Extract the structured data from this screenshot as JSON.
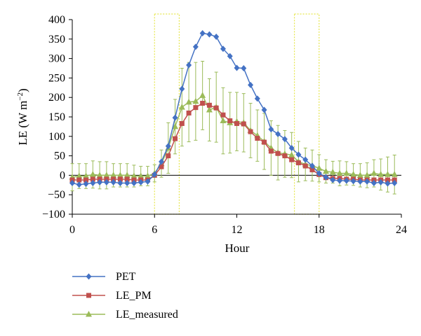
{
  "chart_data": {
    "type": "line",
    "xlabel": "Hour",
    "ylabel_main": "LE (W m",
    "ylabel_sup": "−2",
    "ylabel_close": ")",
    "xlim": [
      0,
      24
    ],
    "ylim": [
      -100,
      400
    ],
    "xticks": [
      0,
      6,
      12,
      18,
      24
    ],
    "yticks": [
      -100,
      -50,
      0,
      50,
      100,
      150,
      200,
      250,
      300,
      350,
      400
    ],
    "xtick_labels": [
      "0",
      "6",
      "12",
      "18",
      "24"
    ],
    "ytick_labels": [
      "−100",
      "−50",
      "0",
      "50",
      "100",
      "150",
      "200",
      "250",
      "300",
      "350",
      "400"
    ],
    "grid": false,
    "legend_position": "bottom-left",
    "highlight_windows": [
      [
        6,
        7.8
      ],
      [
        16.2,
        18
      ]
    ],
    "highlight_color": "#e6e64c",
    "x": [
      0,
      0.5,
      1,
      1.5,
      2,
      2.5,
      3,
      3.5,
      4,
      4.5,
      5,
      5.5,
      6,
      6.5,
      7,
      7.5,
      8,
      8.5,
      9,
      9.5,
      10,
      10.5,
      11,
      11.5,
      12,
      12.5,
      13,
      13.5,
      14,
      14.5,
      15,
      15.5,
      16,
      16.5,
      17,
      17.5,
      18,
      18.5,
      19,
      19.5,
      20,
      20.5,
      21,
      21.5,
      22,
      22.5,
      23,
      23.5
    ],
    "series": [
      {
        "name": "PET",
        "color": "#4472c4",
        "marker": "diamond",
        "values": [
          -20,
          -24,
          -22,
          -20,
          -18,
          -18,
          -18,
          -20,
          -20,
          -20,
          -18,
          -16,
          2,
          35,
          75,
          148,
          222,
          283,
          330,
          365,
          362,
          356,
          325,
          306,
          276,
          275,
          232,
          197,
          168,
          118,
          106,
          93,
          70,
          53,
          40,
          24,
          5,
          -5,
          -12,
          -14,
          -14,
          -15,
          -16,
          -16,
          -20,
          -18,
          -21,
          -20
        ]
      },
      {
        "name": "LE_PM",
        "color": "#c0504d",
        "marker": "square",
        "values": [
          -12,
          -12,
          -12,
          -10,
          -10,
          -10,
          -10,
          -10,
          -10,
          -12,
          -12,
          -12,
          0,
          22,
          50,
          94,
          133,
          160,
          174,
          185,
          180,
          173,
          155,
          140,
          133,
          132,
          112,
          95,
          85,
          62,
          56,
          50,
          40,
          32,
          24,
          14,
          2,
          -6,
          -8,
          -8,
          -10,
          -10,
          -12,
          -12,
          -12,
          -12,
          -12,
          -12
        ]
      },
      {
        "name": "LE_measured",
        "color": "#9bbb59",
        "marker": "triangle",
        "values": [
          -5,
          -2,
          -2,
          2,
          0,
          0,
          0,
          0,
          0,
          -2,
          -2,
          -2,
          5,
          30,
          70,
          125,
          175,
          188,
          190,
          205,
          168,
          175,
          140,
          135,
          138,
          135,
          115,
          102,
          87,
          70,
          58,
          55,
          52,
          35,
          28,
          25,
          18,
          10,
          8,
          5,
          5,
          2,
          0,
          0,
          5,
          2,
          2,
          2
        ],
        "errors": [
          35,
          32,
          32,
          35,
          35,
          35,
          30,
          30,
          30,
          28,
          25,
          25,
          22,
          35,
          65,
          70,
          100,
          102,
          100,
          88,
          80,
          90,
          85,
          78,
          75,
          75,
          70,
          66,
          72,
          70,
          70,
          60,
          58,
          52,
          42,
          40,
          35,
          30,
          28,
          32,
          30,
          28,
          30,
          32,
          35,
          40,
          45,
          50
        ]
      }
    ]
  }
}
